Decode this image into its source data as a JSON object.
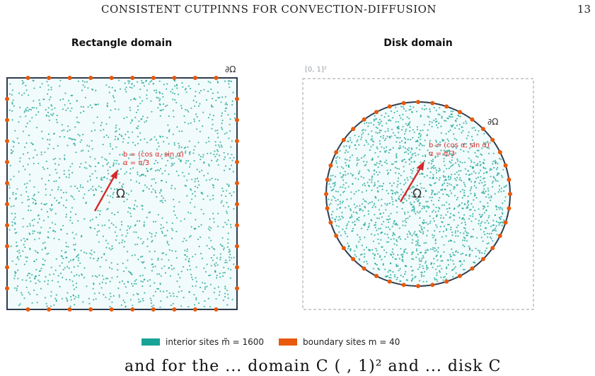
{
  "header": {
    "running_title": "CONSISTENT CUTPINNS FOR CONVECTION-DIFFUSION",
    "page_number": "13"
  },
  "figure": {
    "colors": {
      "interior": "#17a396",
      "boundary": "#e8590c",
      "domain_fill": "#f2fbfb",
      "domain_edge": "#2e3d4f",
      "arrow": "#d62a2a",
      "bbox": "#9aa0a6"
    },
    "left_panel": {
      "title": "Rectangle domain",
      "boundary_label": "∂Ω",
      "domain_label": "Ω",
      "velocity_label": "b = (cos α, sin α)",
      "angle_label": "α = π/3"
    },
    "right_panel": {
      "title": "Disk domain",
      "bbox_label": "[0, 1]²",
      "boundary_label": "∂Ω",
      "domain_label": "Ω",
      "velocity_label": "b = (cos α, sin α)",
      "angle_label": "α = π/3"
    },
    "legend": {
      "interior_text": "interior sites  m̃ = 1600",
      "boundary_text": "boundary sites  m = 40"
    }
  },
  "chart_data": {
    "type": "scatter",
    "series": [
      {
        "name": "interior sites  m̃ = 1600",
        "count": 1600
      },
      {
        "name": "boundary sites  m = 40",
        "count": 40
      }
    ],
    "angle_alpha": "π/3"
  },
  "bottom_text": "and            for the  ... domain  C    (   ,  1)²   and  ... disk  C"
}
